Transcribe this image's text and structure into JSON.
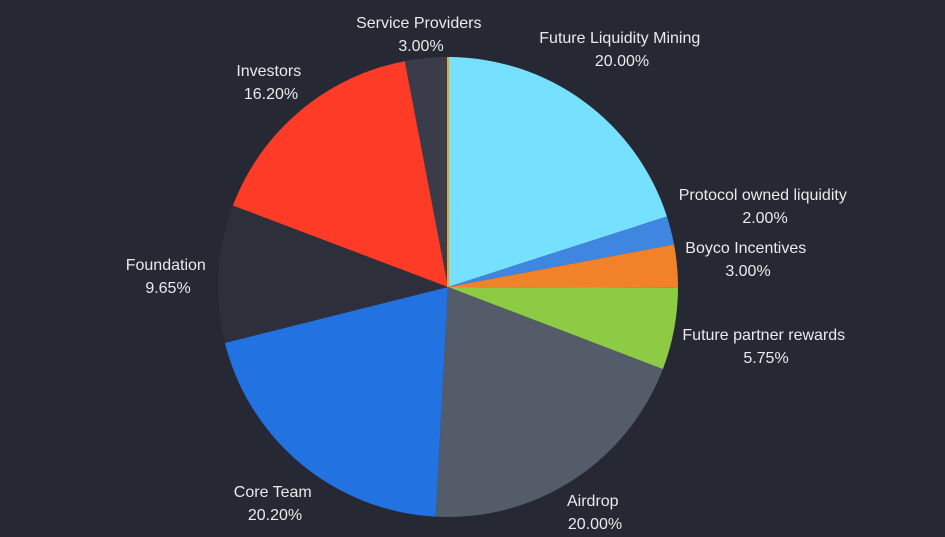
{
  "chart_data": {
    "type": "pie",
    "title": "",
    "slices": [
      {
        "label": "Future Liquidity Mining",
        "value_text": "20.00%",
        "value": 20.0,
        "color": "#76e0ff"
      },
      {
        "label": "Protocol owned liquidity",
        "value_text": "2.00%",
        "value": 2.0,
        "color": "#3f86e0"
      },
      {
        "label": "Boyco Incentives",
        "value_text": "3.00%",
        "value": 3.0,
        "color": "#f2822a"
      },
      {
        "label": "Future partner rewards",
        "value_text": "5.75%",
        "value": 5.75,
        "color": "#8dcb45"
      },
      {
        "label": "Airdrop",
        "value_text": "20.00%",
        "value": 20.0,
        "color": "#545c69"
      },
      {
        "label": "Core Team",
        "value_text": "20.20%",
        "value": 20.2,
        "color": "#2272e2"
      },
      {
        "label": "Foundation",
        "value_text": "9.65%",
        "value": 9.65,
        "color": "#2d2f3b"
      },
      {
        "label": "Investors",
        "value_text": "16.20%",
        "value": 16.2,
        "color": "#fd3b26"
      },
      {
        "label": "Service Providers",
        "value_text": "3.00%",
        "value": 3.0,
        "color": "#3a3d49"
      }
    ],
    "colors": {
      "background": "#262833",
      "label_text": "#e9eaee",
      "sliver_accent": "#f0a020"
    }
  }
}
